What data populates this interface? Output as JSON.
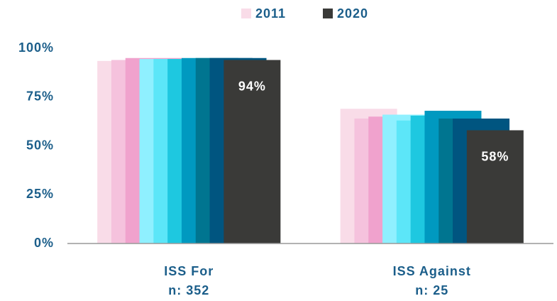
{
  "chart_data": {
    "type": "bar",
    "categories": [
      "ISS For",
      "ISS Against"
    ],
    "sample_sizes": [
      "n: 352",
      "n: 25"
    ],
    "series": [
      {
        "name": "2011",
        "color": "#f9dce8",
        "values": [
          93.5,
          69
        ]
      },
      {
        "color": "#f5c2dd",
        "values": [
          94,
          64
        ]
      },
      {
        "color": "#f0a2cd",
        "values": [
          95,
          65
        ]
      },
      {
        "color": "#8ff0ff",
        "values": [
          94.5,
          66
        ]
      },
      {
        "color": "#5ce6f8",
        "values": [
          94.5,
          63
        ]
      },
      {
        "color": "#1ec8e0",
        "values": [
          94.5,
          65.5
        ]
      },
      {
        "color": "#0099c0",
        "values": [
          95,
          68
        ]
      },
      {
        "color": "#007590",
        "values": [
          95,
          64
        ]
      },
      {
        "color": "#005580",
        "values": [
          95,
          64
        ]
      },
      {
        "name": "2020",
        "color": "#3a3a38",
        "values": [
          94,
          58
        ],
        "value_labels": [
          "94%",
          "58%"
        ]
      }
    ],
    "ylim": [
      0,
      100
    ],
    "yticks": [
      {
        "value": 0,
        "label": "0%"
      },
      {
        "value": 25,
        "label": "25%"
      },
      {
        "value": 50,
        "label": "50%"
      },
      {
        "value": 75,
        "label": "75%"
      },
      {
        "value": 100,
        "label": "100%"
      }
    ],
    "grid": false,
    "legend": "top"
  }
}
